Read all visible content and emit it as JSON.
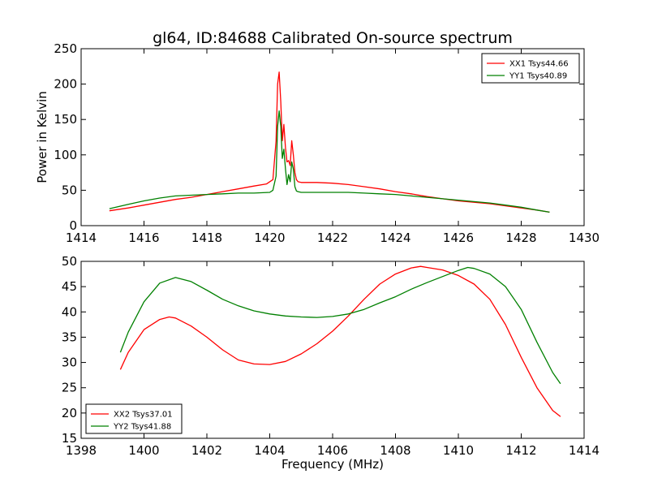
{
  "figure": {
    "title": "gl64, ID:84688 Calibrated On-source spectrum",
    "xlabel": "Frequency (MHz)",
    "ylabel": "Power in Kelvin"
  },
  "colors": {
    "red": "#ff0000",
    "green": "#008000"
  },
  "chart_data": [
    {
      "type": "line",
      "xlim": [
        1414,
        1430
      ],
      "ylim": [
        0,
        250
      ],
      "xticks": [
        1414,
        1416,
        1418,
        1420,
        1422,
        1424,
        1426,
        1428,
        1430
      ],
      "yticks": [
        0,
        50,
        100,
        150,
        200,
        250
      ],
      "legend": "top-right",
      "grid": false,
      "series": [
        {
          "name": "XX1 Tsys44.66",
          "color": "#ff0000",
          "x": [
            1414.9,
            1415.5,
            1416.0,
            1416.5,
            1417.0,
            1417.5,
            1418.0,
            1418.5,
            1419.0,
            1419.5,
            1419.9,
            1420.1,
            1420.2,
            1420.25,
            1420.3,
            1420.35,
            1420.4,
            1420.45,
            1420.5,
            1420.55,
            1420.6,
            1420.65,
            1420.7,
            1420.75,
            1420.8,
            1420.85,
            1420.9,
            1421.0,
            1421.5,
            1422.0,
            1422.5,
            1423.0,
            1423.5,
            1424.0,
            1424.5,
            1425.0,
            1425.5,
            1426.0,
            1426.5,
            1427.0,
            1427.5,
            1428.0,
            1428.5,
            1428.9
          ],
          "y": [
            21,
            25,
            29,
            33,
            37,
            40,
            44,
            48,
            52,
            56,
            59,
            65,
            120,
            200,
            217,
            175,
            120,
            143,
            110,
            90,
            92,
            85,
            120,
            100,
            75,
            65,
            62,
            61,
            61,
            60,
            58,
            55,
            52,
            48,
            45,
            41,
            38,
            35,
            33,
            31,
            28,
            25,
            22,
            19
          ]
        },
        {
          "name": "YY1 Tsys40.89",
          "color": "#008000",
          "x": [
            1414.9,
            1415.5,
            1416.0,
            1416.5,
            1417.0,
            1417.5,
            1418.0,
            1418.5,
            1419.0,
            1419.5,
            1420.0,
            1420.1,
            1420.2,
            1420.25,
            1420.3,
            1420.35,
            1420.4,
            1420.45,
            1420.5,
            1420.55,
            1420.6,
            1420.65,
            1420.7,
            1420.75,
            1420.8,
            1420.85,
            1420.9,
            1421.0,
            1421.5,
            1422.0,
            1422.5,
            1423.0,
            1423.5,
            1424.0,
            1424.5,
            1425.0,
            1425.5,
            1426.0,
            1426.5,
            1427.0,
            1427.5,
            1428.0,
            1428.5,
            1428.9
          ],
          "y": [
            24,
            30,
            35,
            39,
            42,
            43,
            44,
            45,
            46,
            46,
            47,
            50,
            70,
            140,
            162,
            140,
            95,
            108,
            80,
            58,
            72,
            62,
            90,
            80,
            55,
            49,
            48,
            47,
            47,
            47,
            47,
            46,
            45,
            44,
            42,
            40,
            38,
            36,
            34,
            32,
            29,
            26,
            22,
            19
          ]
        }
      ]
    },
    {
      "type": "line",
      "xlim": [
        1398,
        1414
      ],
      "ylim": [
        15,
        50
      ],
      "xticks": [
        1398,
        1400,
        1402,
        1404,
        1406,
        1408,
        1410,
        1412,
        1414
      ],
      "yticks": [
        15,
        20,
        25,
        30,
        35,
        40,
        45,
        50
      ],
      "legend": "bottom-left",
      "grid": false,
      "series": [
        {
          "name": "XX2 Tsys37.01",
          "color": "#ff0000",
          "x": [
            1399.25,
            1399.5,
            1400.0,
            1400.5,
            1400.8,
            1401.0,
            1401.5,
            1402.0,
            1402.5,
            1403.0,
            1403.5,
            1404.0,
            1404.5,
            1405.0,
            1405.5,
            1406.0,
            1406.5,
            1407.0,
            1407.5,
            1408.0,
            1408.5,
            1408.8,
            1409.0,
            1409.5,
            1410.0,
            1410.5,
            1411.0,
            1411.5,
            1412.0,
            1412.5,
            1413.0,
            1413.25
          ],
          "y": [
            28.6,
            32.0,
            36.5,
            38.5,
            39.0,
            38.8,
            37.2,
            35.0,
            32.5,
            30.5,
            29.7,
            29.6,
            30.2,
            31.7,
            33.7,
            36.2,
            39.2,
            42.5,
            45.5,
            47.5,
            48.7,
            49.0,
            48.8,
            48.3,
            47.2,
            45.5,
            42.5,
            37.5,
            31.0,
            25.0,
            20.5,
            19.3
          ]
        },
        {
          "name": "YY2 Tsys41.88",
          "color": "#008000",
          "x": [
            1399.25,
            1399.5,
            1400.0,
            1400.5,
            1401.0,
            1401.5,
            1402.0,
            1402.5,
            1403.0,
            1403.5,
            1404.0,
            1404.5,
            1405.0,
            1405.5,
            1406.0,
            1406.5,
            1407.0,
            1407.5,
            1408.0,
            1408.5,
            1409.0,
            1409.5,
            1410.0,
            1410.3,
            1410.5,
            1411.0,
            1411.5,
            1412.0,
            1412.5,
            1413.0,
            1413.25
          ],
          "y": [
            32.0,
            36.0,
            42.0,
            45.7,
            46.8,
            46.0,
            44.3,
            42.5,
            41.2,
            40.2,
            39.6,
            39.2,
            39.0,
            38.9,
            39.1,
            39.6,
            40.5,
            41.8,
            43.0,
            44.5,
            45.8,
            47.0,
            48.2,
            48.8,
            48.6,
            47.5,
            45.0,
            40.5,
            34.0,
            28.0,
            25.8
          ]
        }
      ]
    }
  ]
}
